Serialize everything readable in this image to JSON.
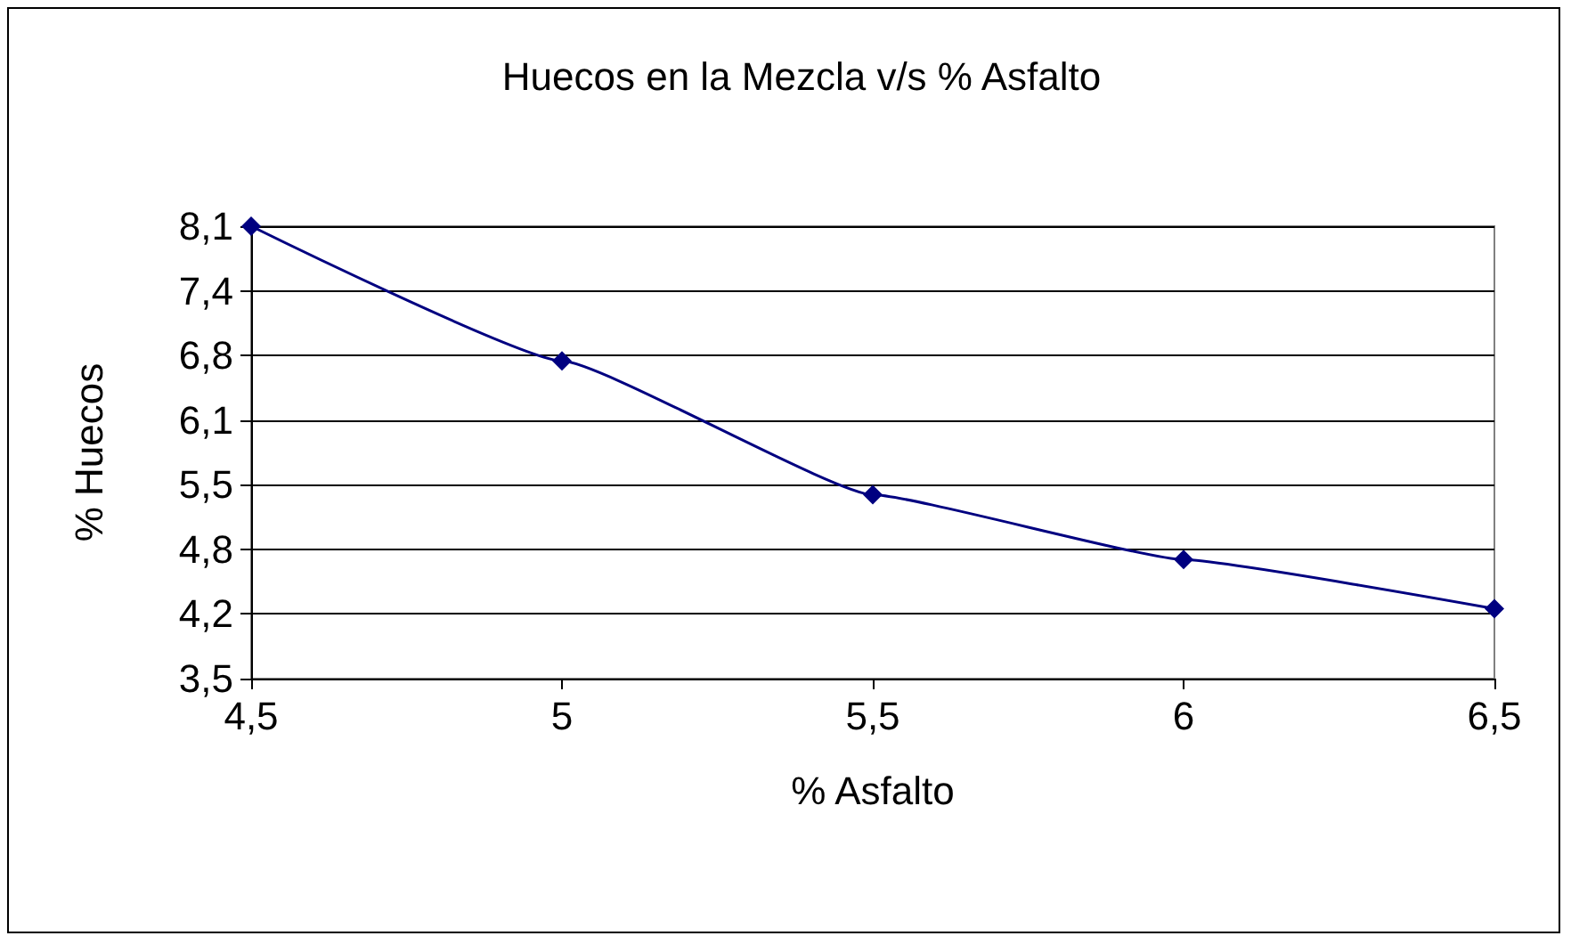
{
  "chart_data": {
    "type": "line",
    "title": "Huecos en la Mezcla v/s % Asfalto",
    "xlabel": "% Asfalto",
    "ylabel": "% Huecos",
    "x": [
      4.5,
      5,
      5.5,
      6,
      6.5
    ],
    "series": [
      {
        "color": "#000080",
        "values": [
          8.1,
          6.73,
          5.37,
          4.71,
          4.21
        ]
      }
    ],
    "xlim": [
      4.5,
      6.5
    ],
    "xticks": [
      {
        "value": 4.5,
        "label": "4,5"
      },
      5,
      {
        "value": 5.5,
        "label": "5,5"
      },
      6,
      {
        "value": 6.5,
        "label": "6,5"
      }
    ],
    "ylim": [
      3.5,
      8.1
    ],
    "yticks": [
      {
        "value": 3.5,
        "label": "3,5"
      },
      {
        "value": 4.157,
        "label": "4,2"
      },
      {
        "value": 4.814,
        "label": "4,8"
      },
      {
        "value": 5.471,
        "label": "5,5"
      },
      {
        "value": 6.129,
        "label": "6,1"
      },
      {
        "value": 6.786,
        "label": "6,8"
      },
      {
        "value": 7.443,
        "label": "7,4"
      },
      {
        "value": 8.1,
        "label": "8,1"
      }
    ],
    "grid": "y",
    "marker": "diamond",
    "line_style": "solid"
  }
}
